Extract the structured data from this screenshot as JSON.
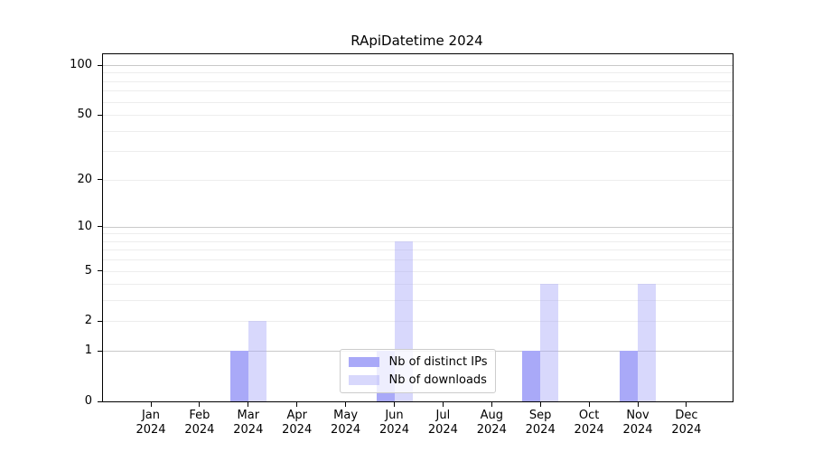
{
  "chart_data": {
    "type": "bar",
    "title": "RApiDatetime 2024",
    "categories": [
      "Jan",
      "Feb",
      "Mar",
      "Apr",
      "May",
      "Jun",
      "Jul",
      "Aug",
      "Sep",
      "Oct",
      "Nov",
      "Dec"
    ],
    "category_year": "2024",
    "series": [
      {
        "name": "Nb of distinct IPs",
        "color": "#a9a9f8",
        "values": [
          0,
          0,
          1,
          0,
          0,
          1,
          0,
          0,
          1,
          0,
          1,
          0
        ]
      },
      {
        "name": "Nb of downloads",
        "color": "rgba(169,169,248,0.45)",
        "values": [
          0,
          0,
          2,
          0,
          0,
          8,
          0,
          0,
          4,
          0,
          4,
          0
        ]
      }
    ],
    "xlabel": "",
    "ylabel": "",
    "yscale": "log1p",
    "ylim": [
      0,
      116
    ],
    "ytick_labels": [
      0,
      1,
      2,
      5,
      10,
      20,
      50,
      100
    ],
    "major_gridlines": [
      1,
      10,
      100
    ],
    "minor_gridlines": [
      2,
      3,
      4,
      5,
      6,
      7,
      8,
      9,
      20,
      30,
      40,
      50,
      60,
      70,
      80,
      90
    ],
    "grid": "horizontal",
    "legend_position": "lower center",
    "colors": {
      "distinct_ips_bar": "#a9a9f8",
      "downloads_bar": "#dcdcf8",
      "major_grid": "#c9c9c9",
      "minor_grid": "#ededed",
      "axis": "#000000"
    }
  }
}
